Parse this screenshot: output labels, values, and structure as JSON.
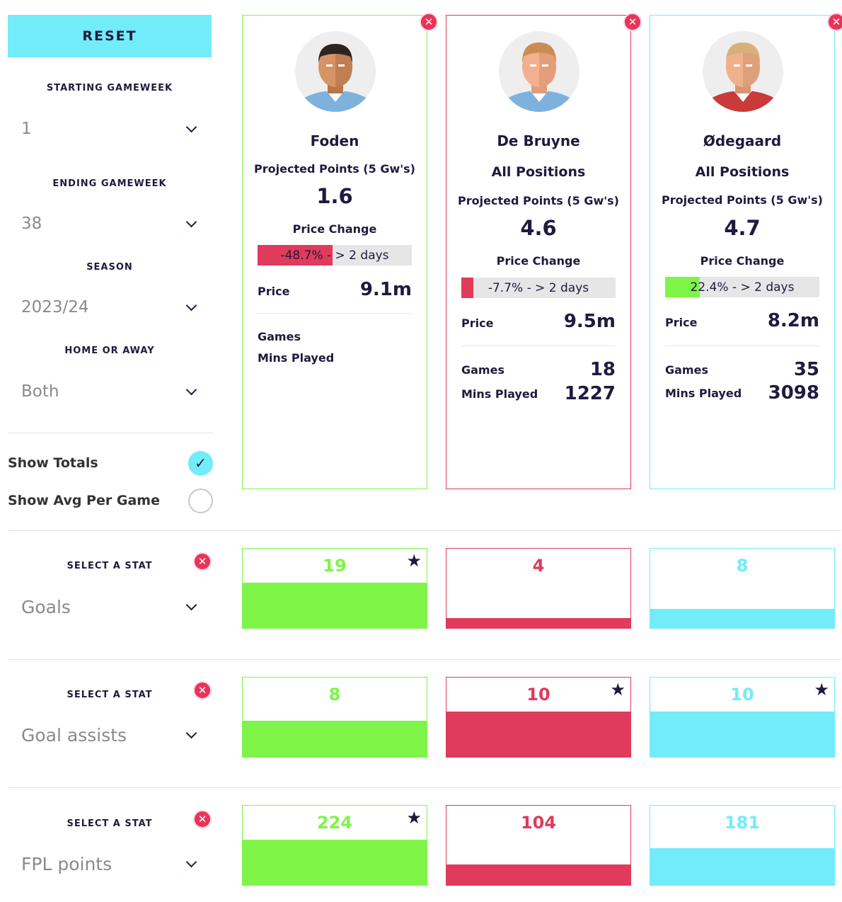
{
  "colors": {
    "green": "#7ef449",
    "red": "#e03a5c",
    "cyan": "#72ecf9",
    "navy": "#1f1a3d"
  },
  "sidebar": {
    "reset_label": "RESET",
    "starting_gameweek": {
      "label": "STARTING GAMEWEEK",
      "value": "1"
    },
    "ending_gameweek": {
      "label": "ENDING GAMEWEEK",
      "value": "38"
    },
    "season": {
      "label": "SEASON",
      "value": "2023/24"
    },
    "home_or_away": {
      "label": "HOME OR AWAY",
      "value": "Both"
    },
    "show_totals": {
      "label": "Show Totals",
      "checked": true
    },
    "show_avg": {
      "label": "Show Avg Per Game",
      "checked": false
    }
  },
  "players": [
    {
      "name": "Foden",
      "position": "",
      "projected_label": "Projected Points (5 Gw's)",
      "projected": "1.6",
      "price_change_label": "Price Change",
      "price_change_text": "-48.7% - > 2 days",
      "price_change_fraction": 0.487,
      "price_label": "Price",
      "price": "9.1m",
      "games_label": "Games",
      "games": "",
      "mins_label": "Mins Played",
      "mins": "",
      "kit": "sky-blue"
    },
    {
      "name": "De Bruyne",
      "position": "All Positions",
      "projected_label": "Projected Points (5 Gw's)",
      "projected": "4.6",
      "price_change_label": "Price Change",
      "price_change_text": "-7.7% - > 2 days",
      "price_change_fraction": 0.077,
      "price_label": "Price",
      "price": "9.5m",
      "games_label": "Games",
      "games": "18",
      "mins_label": "Mins Played",
      "mins": "1227",
      "kit": "sky-blue"
    },
    {
      "name": "Ødegaard",
      "position": "All Positions",
      "projected_label": "Projected Points (5 Gw's)",
      "projected": "4.7",
      "price_change_label": "Price Change",
      "price_change_text": "22.4% - > 2 days",
      "price_change_fraction": 0.224,
      "price_label": "Price",
      "price": "8.2m",
      "games_label": "Games",
      "games": "35",
      "mins_label": "Mins Played",
      "mins": "3098",
      "kit": "red"
    }
  ],
  "stats": [
    {
      "select_label": "SELECT A STAT",
      "stat": "Goals",
      "values": [
        "19",
        "4",
        "8"
      ],
      "fractions": [
        1.0,
        0.21,
        0.42
      ],
      "best": [
        true,
        false,
        false
      ]
    },
    {
      "select_label": "SELECT A STAT",
      "stat": "Goal assists",
      "values": [
        "8",
        "10",
        "10"
      ],
      "fractions": [
        0.8,
        1.0,
        1.0
      ],
      "best": [
        false,
        true,
        true
      ]
    },
    {
      "select_label": "SELECT A STAT",
      "stat": "FPL points",
      "values": [
        "224",
        "104",
        "181"
      ],
      "fractions": [
        1.0,
        0.46,
        0.81
      ],
      "best": [
        true,
        false,
        false
      ]
    }
  ]
}
